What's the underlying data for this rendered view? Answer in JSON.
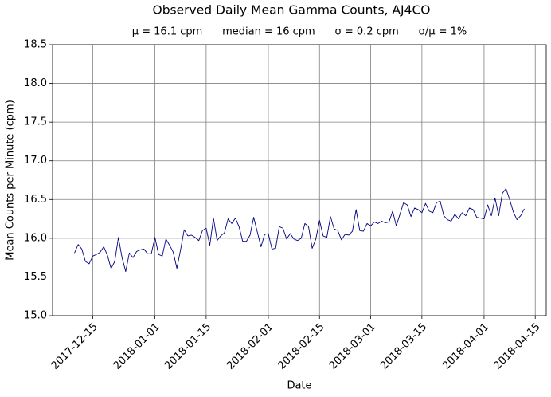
{
  "chart_data": {
    "type": "line",
    "title": "Observed Daily Mean Gamma Counts, AJ4CO",
    "subtitle": "μ = 16.1 cpm      median = 16 cpm      σ = 0.2 cpm      σ/μ = 1%",
    "x_label": "Date",
    "y_label": "Mean Counts per Minute (cpm)",
    "x": [
      "2017-12-10",
      "2017-12-11",
      "2017-12-12",
      "2017-12-13",
      "2017-12-14",
      "2017-12-15",
      "2017-12-16",
      "2017-12-17",
      "2017-12-18",
      "2017-12-19",
      "2017-12-20",
      "2017-12-21",
      "2017-12-22",
      "2017-12-23",
      "2017-12-24",
      "2017-12-25",
      "2017-12-26",
      "2017-12-27",
      "2017-12-28",
      "2017-12-29",
      "2017-12-30",
      "2017-12-31",
      "2018-01-01",
      "2018-01-02",
      "2018-01-03",
      "2018-01-04",
      "2018-01-05",
      "2018-01-06",
      "2018-01-07",
      "2018-01-08",
      "2018-01-09",
      "2018-01-10",
      "2018-01-11",
      "2018-01-12",
      "2018-01-13",
      "2018-01-14",
      "2018-01-15",
      "2018-01-16",
      "2018-01-17",
      "2018-01-18",
      "2018-01-19",
      "2018-01-20",
      "2018-01-21",
      "2018-01-22",
      "2018-01-23",
      "2018-01-24",
      "2018-01-25",
      "2018-01-26",
      "2018-01-27",
      "2018-01-28",
      "2018-01-29",
      "2018-01-30",
      "2018-01-31",
      "2018-02-01",
      "2018-02-02",
      "2018-02-03",
      "2018-02-04",
      "2018-02-05",
      "2018-02-06",
      "2018-02-07",
      "2018-02-08",
      "2018-02-09",
      "2018-02-10",
      "2018-02-11",
      "2018-02-12",
      "2018-02-13",
      "2018-02-14",
      "2018-02-15",
      "2018-02-16",
      "2018-02-17",
      "2018-02-18",
      "2018-02-19",
      "2018-02-20",
      "2018-02-21",
      "2018-02-22",
      "2018-02-23",
      "2018-02-24",
      "2018-02-25",
      "2018-02-26",
      "2018-02-27",
      "2018-02-28",
      "2018-03-01",
      "2018-03-02",
      "2018-03-03",
      "2018-03-04",
      "2018-03-05",
      "2018-03-06",
      "2018-03-07",
      "2018-03-08",
      "2018-03-09",
      "2018-03-10",
      "2018-03-11",
      "2018-03-12",
      "2018-03-13",
      "2018-03-14",
      "2018-03-15",
      "2018-03-16",
      "2018-03-17",
      "2018-03-18",
      "2018-03-19",
      "2018-03-20",
      "2018-03-21",
      "2018-03-22",
      "2018-03-23",
      "2018-03-24",
      "2018-03-25",
      "2018-03-26",
      "2018-03-27",
      "2018-03-28",
      "2018-03-29",
      "2018-03-30",
      "2018-03-31",
      "2018-04-01",
      "2018-04-02",
      "2018-04-03",
      "2018-04-04",
      "2018-04-05",
      "2018-04-06",
      "2018-04-07",
      "2018-04-08",
      "2018-04-09",
      "2018-04-10",
      "2018-04-11",
      "2018-04-12"
    ],
    "series": [
      {
        "color": "#000080",
        "values": [
          15.81,
          15.92,
          15.86,
          15.7,
          15.67,
          15.77,
          15.79,
          15.82,
          15.89,
          15.78,
          15.61,
          15.7,
          16.01,
          15.75,
          15.57,
          15.81,
          15.75,
          15.83,
          15.85,
          15.86,
          15.8,
          15.8,
          16.01,
          15.79,
          15.77,
          15.99,
          15.91,
          15.82,
          15.61,
          15.85,
          16.11,
          16.03,
          16.04,
          16.01,
          15.97,
          16.1,
          16.13,
          15.91,
          16.26,
          15.97,
          16.03,
          16.07,
          16.25,
          16.19,
          16.26,
          16.15,
          15.96,
          15.96,
          16.04,
          16.27,
          16.08,
          15.89,
          16.05,
          16.06,
          15.86,
          15.87,
          16.15,
          16.13,
          15.99,
          16.06,
          15.99,
          15.97,
          16.0,
          16.19,
          16.15,
          15.87,
          15.99,
          16.23,
          16.03,
          16.01,
          16.28,
          16.12,
          16.1,
          15.98,
          16.05,
          16.04,
          16.09,
          16.37,
          16.1,
          16.09,
          16.19,
          16.16,
          16.21,
          16.19,
          16.22,
          16.2,
          16.21,
          16.35,
          16.16,
          16.31,
          16.46,
          16.43,
          16.28,
          16.39,
          16.37,
          16.33,
          16.45,
          16.35,
          16.33,
          16.46,
          16.48,
          16.29,
          16.24,
          16.22,
          16.31,
          16.25,
          16.33,
          16.29,
          16.39,
          16.37,
          16.27,
          16.26,
          16.25,
          16.43,
          16.29,
          16.52,
          16.29,
          16.58,
          16.64,
          16.5,
          16.34,
          16.24,
          16.29,
          16.38
        ]
      }
    ],
    "xlim": [
      "2017-12-04",
      "2018-04-18"
    ],
    "xticks": [
      "2017-12-15",
      "2018-01-01",
      "2018-01-15",
      "2018-02-01",
      "2018-02-15",
      "2018-03-01",
      "2018-03-15",
      "2018-04-01",
      "2018-04-15"
    ],
    "ylim": [
      15,
      18.5
    ],
    "yticks": [
      {
        "value": 15,
        "label": "15.0"
      },
      15.5,
      {
        "value": 16,
        "label": "16.0"
      },
      16.5,
      {
        "value": 17,
        "label": "17.0"
      },
      17.5,
      {
        "value": 18,
        "label": "18.0"
      },
      18.5
    ],
    "grid": true
  }
}
